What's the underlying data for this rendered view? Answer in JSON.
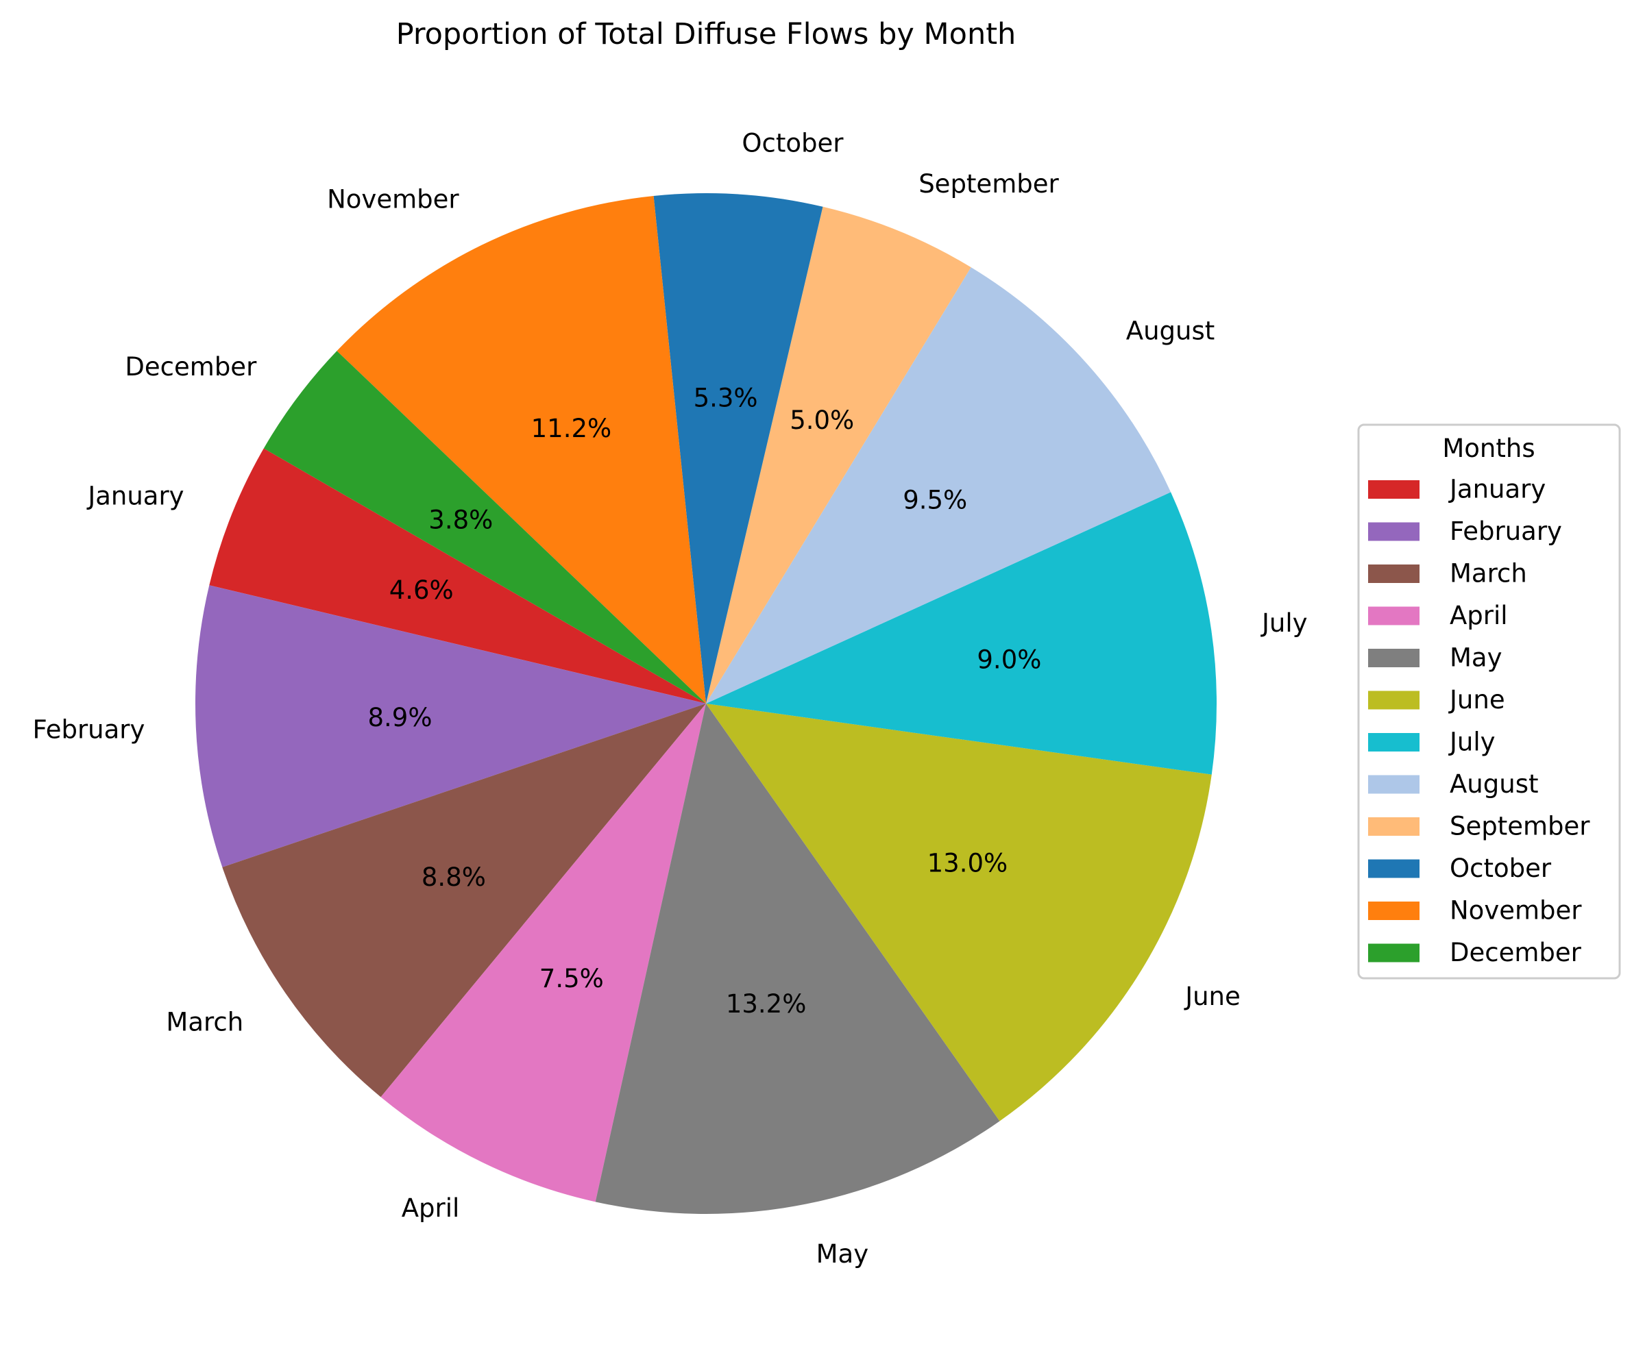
{
  "chart_data": {
    "type": "pie",
    "title": "Proportion of Total Diffuse Flows by Month",
    "legend_title": "Months",
    "legend_position": "right",
    "start_angle_deg": 150,
    "direction": "counterclockwise",
    "slices": [
      {
        "label": "January",
        "value": 4.6,
        "pct_label": "4.6%",
        "color": "#d62728"
      },
      {
        "label": "February",
        "value": 8.9,
        "pct_label": "8.9%",
        "color": "#9467bd"
      },
      {
        "label": "March",
        "value": 8.8,
        "pct_label": "8.8%",
        "color": "#8c564b"
      },
      {
        "label": "April",
        "value": 7.5,
        "pct_label": "7.5%",
        "color": "#e377c2"
      },
      {
        "label": "May",
        "value": 13.2,
        "pct_label": "13.2%",
        "color": "#7f7f7f"
      },
      {
        "label": "June",
        "value": 13.0,
        "pct_label": "13.0%",
        "color": "#bcbd22"
      },
      {
        "label": "July",
        "value": 9.0,
        "pct_label": "9.0%",
        "color": "#17becf"
      },
      {
        "label": "August",
        "value": 9.5,
        "pct_label": "9.5%",
        "color": "#aec7e8"
      },
      {
        "label": "September",
        "value": 5.0,
        "pct_label": "5.0%",
        "color": "#ffbb78"
      },
      {
        "label": "October",
        "value": 5.3,
        "pct_label": "5.3%",
        "color": "#1f77b4"
      },
      {
        "label": "November",
        "value": 11.2,
        "pct_label": "11.2%",
        "color": "#ff7f0e"
      },
      {
        "label": "December",
        "value": 3.8,
        "pct_label": "3.8%",
        "color": "#2ca02c"
      }
    ]
  }
}
